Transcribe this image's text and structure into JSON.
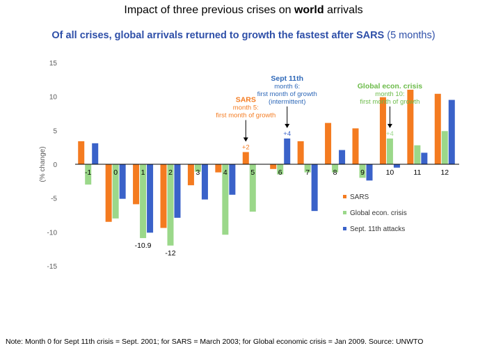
{
  "header": {
    "title_pre": "Impact of three previous crises on ",
    "title_bold": "world",
    "title_post": " arrivals",
    "subtitle_bold": "Of all crises, global arrivals returned to growth the fastest after SARS",
    "subtitle_rest": " (5 months)"
  },
  "footnote": "Note: Month 0 for Sept 11th crisis = Sept. 2001;  for SARS = March 2003;  for Global economic crisis = Jan 2009.  Source: UNWTO",
  "chart_data": {
    "type": "bar",
    "title": "Impact of three previous crises on world arrivals",
    "ylabel": "(% change)",
    "xlabel": "",
    "ylim": [
      -15,
      15
    ],
    "yticks": [
      15,
      10,
      5,
      0,
      -5,
      -10,
      -15
    ],
    "categories": [
      "-1",
      "0",
      "1",
      "2",
      "3",
      "4",
      "5",
      "6",
      "7",
      "8",
      "9",
      "10",
      "11",
      "12"
    ],
    "series": [
      {
        "name": "SARS",
        "color": "#F47B20",
        "values": [
          3.4,
          -8.5,
          -5.9,
          -9.4,
          -3.1,
          -1.2,
          1.8,
          -0.7,
          3.4,
          6.1,
          5.3,
          9.9,
          11.0,
          10.4
        ]
      },
      {
        "name": "Global econ. crisis",
        "color": "#9BD88A",
        "values": [
          -3.0,
          -8.0,
          -10.9,
          -12.0,
          -1.1,
          -10.4,
          -7.0,
          -1.5,
          -1.2,
          -1.2,
          -2.0,
          3.8,
          2.8,
          4.9
        ]
      },
      {
        "name": "Sept. 11th attacks",
        "color": "#3A62C9",
        "values": [
          3.1,
          -5.1,
          -10.1,
          -7.9,
          -5.2,
          -4.5,
          0,
          3.8,
          -6.9,
          2.1,
          -2.4,
          -0.5,
          1.7,
          9.5
        ]
      }
    ],
    "data_labels": [
      {
        "series": 1,
        "index": 2,
        "text": "-10.9"
      },
      {
        "series": 1,
        "index": 3,
        "text": "-12"
      },
      {
        "series": 0,
        "index": 6,
        "text": "+2"
      },
      {
        "series": 2,
        "index": 7,
        "text": "+4"
      },
      {
        "series": 1,
        "index": 11,
        "text": "+4"
      }
    ],
    "annotations": [
      {
        "series": 0,
        "index": 6,
        "color": "#F47B20",
        "lines": [
          "SARS",
          "month 5:",
          "first month of growth"
        ]
      },
      {
        "series": 2,
        "index": 7,
        "color": "#2E68B8",
        "lines": [
          "Sept 11th",
          "month 6:",
          "first month of growth",
          "(intermittent)"
        ]
      },
      {
        "series": 1,
        "index": 11,
        "color": "#6CBB4A",
        "lines": [
          "Global econ. crisis",
          "month 10:",
          "first month of growth"
        ]
      }
    ],
    "legend_position": "bottom-right",
    "grid": false
  }
}
